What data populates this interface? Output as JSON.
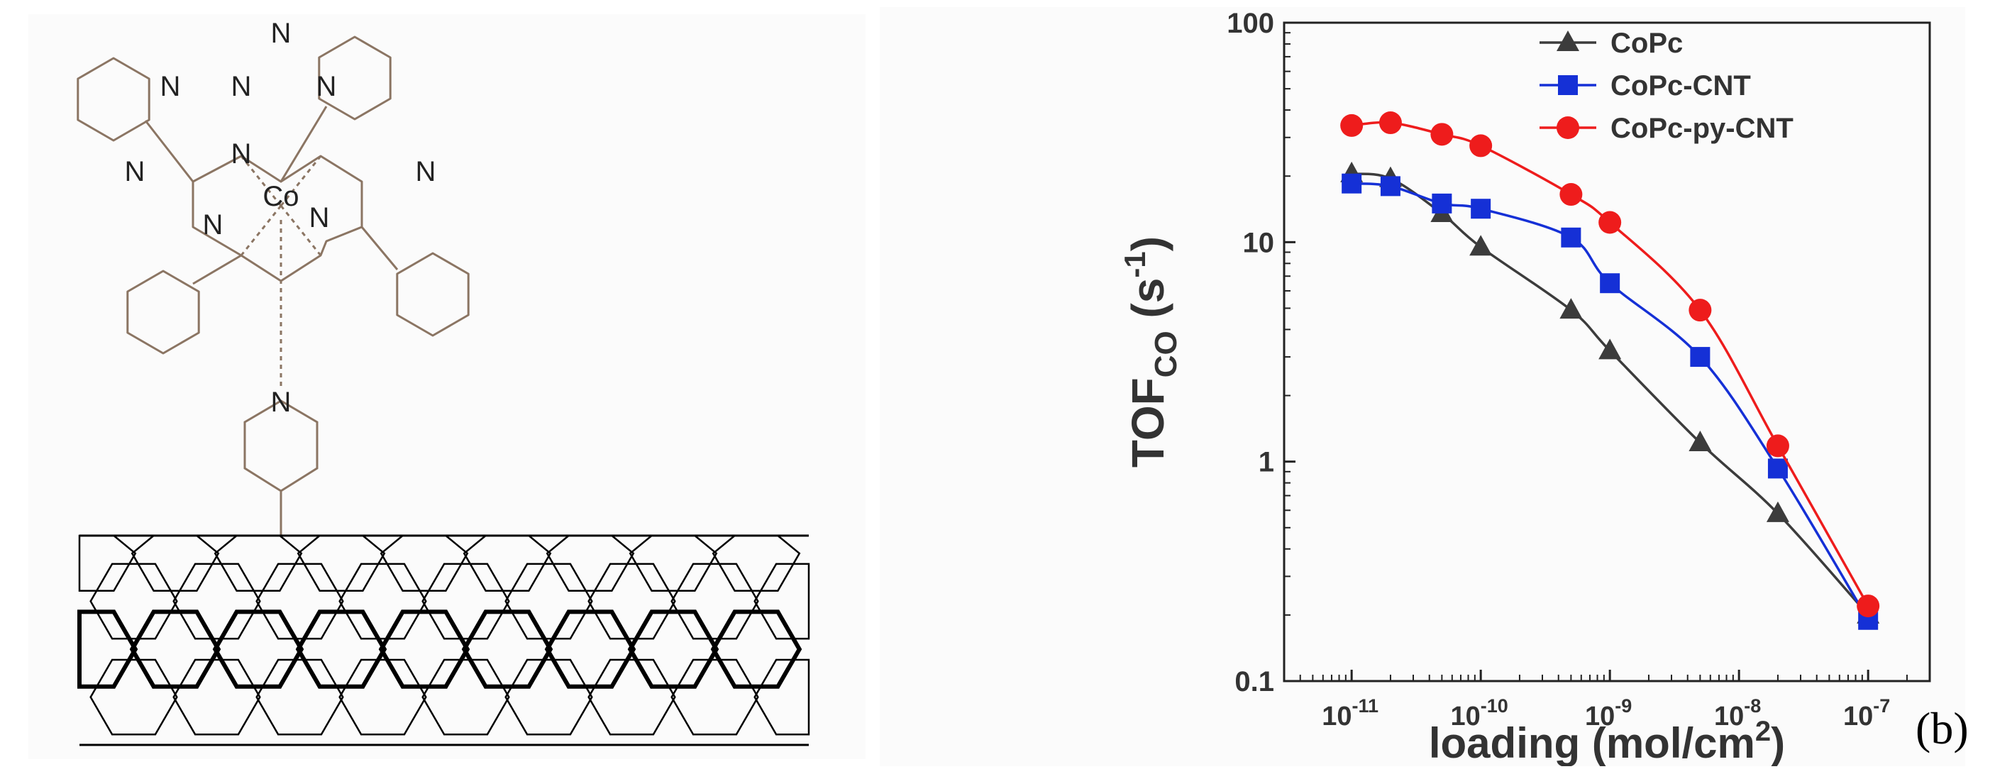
{
  "panel_label": "(b)",
  "structure": {
    "atom_labels": [
      "N",
      "N",
      "N",
      "N",
      "N",
      "N",
      "N",
      "N",
      "N",
      "Co"
    ],
    "description_name": "CoPc-py on carbon nanotube",
    "colors": {
      "molecule": "#8b7563",
      "nanotube": "#000000"
    }
  },
  "chart_data": {
    "type": "line",
    "scale": {
      "x": "log",
      "y": "log"
    },
    "xlabel": "loading (mol/cm",
    "xlabel_sup": "2",
    "xlabel_close": ")",
    "ylabel_main": "TOF",
    "ylabel_sub": "CO",
    "ylabel_rest": " (s",
    "ylabel_sup": "-1",
    "ylabel_close": ")",
    "xlim": [
      3e-12,
      3e-07
    ],
    "ylim": [
      0.1,
      100
    ],
    "x_ticks": [
      {
        "value": 1e-11,
        "base": "10",
        "exp": "-11"
      },
      {
        "value": 1e-10,
        "base": "10",
        "exp": "-10"
      },
      {
        "value": 1e-09,
        "base": "10",
        "exp": "-9"
      },
      {
        "value": 1e-08,
        "base": "10",
        "exp": "-8"
      },
      {
        "value": 1e-07,
        "base": "10",
        "exp": "-7"
      }
    ],
    "y_ticks": [
      {
        "value": 0.1,
        "label": "0.1"
      },
      {
        "value": 1,
        "label": "1"
      },
      {
        "value": 10,
        "label": "10"
      },
      {
        "value": 100,
        "label": "100"
      }
    ],
    "legend_position": "top-right",
    "series": [
      {
        "name": "CoPc",
        "color": "#3c3c3c",
        "marker": "triangle",
        "x": [
          1e-11,
          2e-11,
          5e-11,
          1e-10,
          5e-10,
          1e-09,
          5e-09,
          2e-08,
          1e-07
        ],
        "y": [
          20.5,
          19.5,
          13.5,
          9.5,
          4.9,
          3.2,
          1.22,
          0.58,
          0.2
        ]
      },
      {
        "name": "CoPc-CNT",
        "color": "#1530d6",
        "marker": "square",
        "x": [
          1e-11,
          2e-11,
          5e-11,
          1e-10,
          5e-10,
          1e-09,
          5e-09,
          2e-08,
          1e-07
        ],
        "y": [
          18.5,
          18.0,
          15.0,
          14.2,
          10.5,
          6.5,
          3.0,
          0.93,
          0.19
        ]
      },
      {
        "name": "CoPc-py-CNT",
        "color": "#ee1c1c",
        "marker": "circle",
        "x": [
          1e-11,
          2e-11,
          5e-11,
          1e-10,
          5e-10,
          1e-09,
          5e-09,
          2e-08,
          1e-07
        ],
        "y": [
          34.0,
          35.0,
          31.0,
          27.5,
          16.5,
          12.3,
          4.9,
          1.18,
          0.22
        ]
      }
    ]
  }
}
